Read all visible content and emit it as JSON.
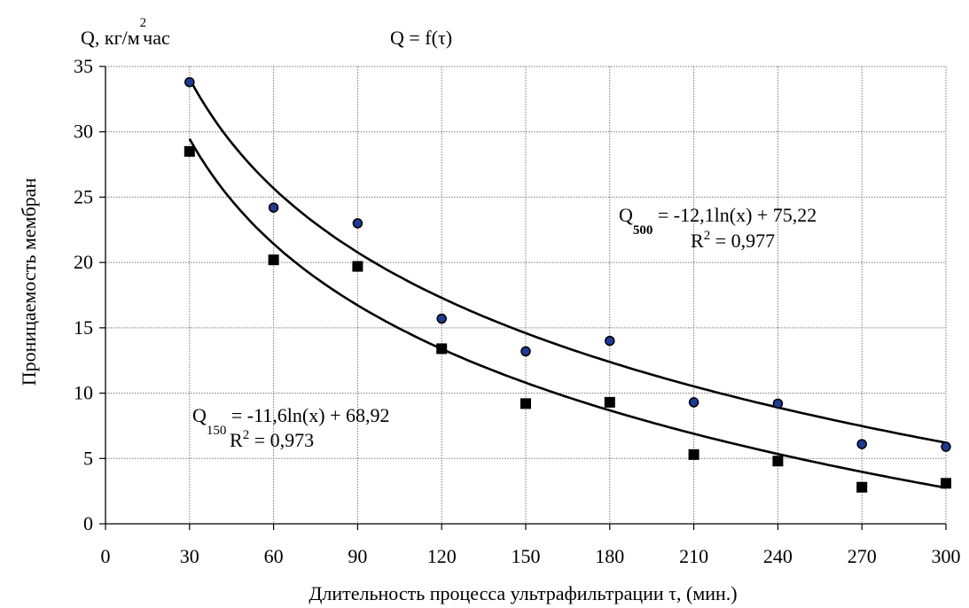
{
  "chart_data": {
    "type": "scatter",
    "title": "Q = f(τ)",
    "ylabel_top": "Q, кг/м",
    "ylabel_top_sup": "2",
    "ylabel_top_suffix": "час",
    "ylabel": "Проницаемость мембран",
    "xlabel": "Длительность процесса ультрафильтрации  τ, (мин.)",
    "xlim": [
      0,
      300
    ],
    "ylim": [
      0,
      35
    ],
    "xticks": [
      0,
      30,
      60,
      90,
      120,
      150,
      180,
      210,
      240,
      270,
      300
    ],
    "yticks": [
      0,
      5,
      10,
      15,
      20,
      25,
      30,
      35
    ],
    "grid": true,
    "series": [
      {
        "marker": "circle",
        "x": [
          30,
          60,
          90,
          120,
          150,
          180,
          210,
          240,
          270,
          300
        ],
        "y": [
          33.8,
          24.2,
          23.0,
          15.7,
          13.2,
          14.0,
          9.3,
          9.2,
          6.1,
          5.9
        ],
        "trend": {
          "a": -12.1,
          "b": 75.22
        }
      },
      {
        "marker": "square",
        "x": [
          30,
          60,
          90,
          120,
          150,
          180,
          210,
          240,
          270,
          300
        ],
        "y": [
          28.5,
          20.2,
          19.7,
          13.4,
          9.2,
          9.3,
          5.3,
          4.8,
          2.8,
          3.1
        ],
        "trend": {
          "a": -11.6,
          "b": 68.92
        }
      }
    ],
    "annotations": {
      "eq500": {
        "q": "Q",
        "sub": "500",
        "rest": " = -12,1ln(x) + 75,22",
        "r2a": "R",
        "r2sup": "2",
        "r2b": " = 0,977"
      },
      "eq150": {
        "q": "Q",
        "sub": "150",
        "rest": " = -11,6ln(x) + 68,92",
        "r2a": "R",
        "r2sup": "2",
        "r2b": " = 0,973"
      }
    }
  }
}
